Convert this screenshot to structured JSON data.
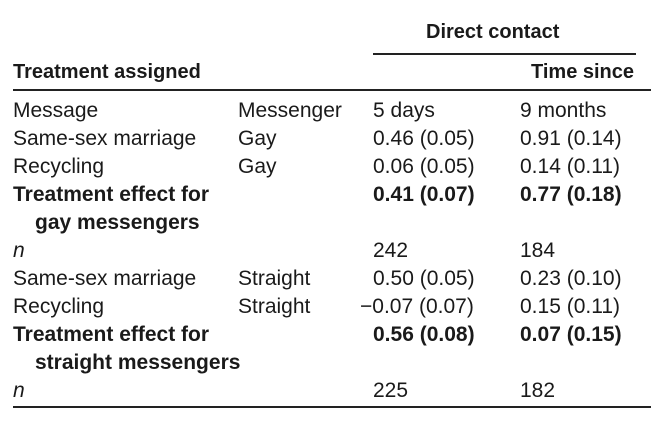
{
  "table": {
    "spanner": "Direct contact",
    "group_header": "Treatment assigned",
    "time_header": "Time since",
    "rows": [
      {
        "c1": "Message",
        "c2": "Messenger",
        "c3": "5 days",
        "c4": "9 months",
        "style": "normal"
      },
      {
        "c1": "Same-sex marriage",
        "c2": "Gay",
        "c3": "0.46 (0.05)",
        "c4": "0.91 (0.14)",
        "style": "normal"
      },
      {
        "c1": "Recycling",
        "c2": "Gay",
        "c3": "0.06 (0.05)",
        "c4": "0.14 (0.11)",
        "style": "normal"
      },
      {
        "c1": "Treatment effect for",
        "c2": "",
        "c3": "0.41 (0.07)",
        "c4": "0.77 (0.18)",
        "style": "bold"
      },
      {
        "c1": "gay messengers",
        "c2": "",
        "c3": "",
        "c4": "",
        "style": "bold-indent"
      },
      {
        "c1": "n",
        "c2": "",
        "c3": "242",
        "c4": "184",
        "style": "italic"
      },
      {
        "c1": "Same-sex marriage",
        "c2": "Straight",
        "c3": "0.50 (0.05)",
        "c4": "0.23 (0.10)",
        "style": "normal"
      },
      {
        "c1": "Recycling",
        "c2": "Straight",
        "c3": "−0.07 (0.07)",
        "c4": "0.15 (0.11)",
        "style": "normal"
      },
      {
        "c1": "Treatment effect for",
        "c2": "",
        "c3": "0.56 (0.08)",
        "c4": "0.07 (0.15)",
        "style": "bold"
      },
      {
        "c1": "straight messengers",
        "c2": "",
        "c3": "",
        "c4": "",
        "style": "bold-indent"
      },
      {
        "c1": "n",
        "c2": "",
        "c3": "225",
        "c4": "182",
        "style": "italic"
      }
    ]
  }
}
